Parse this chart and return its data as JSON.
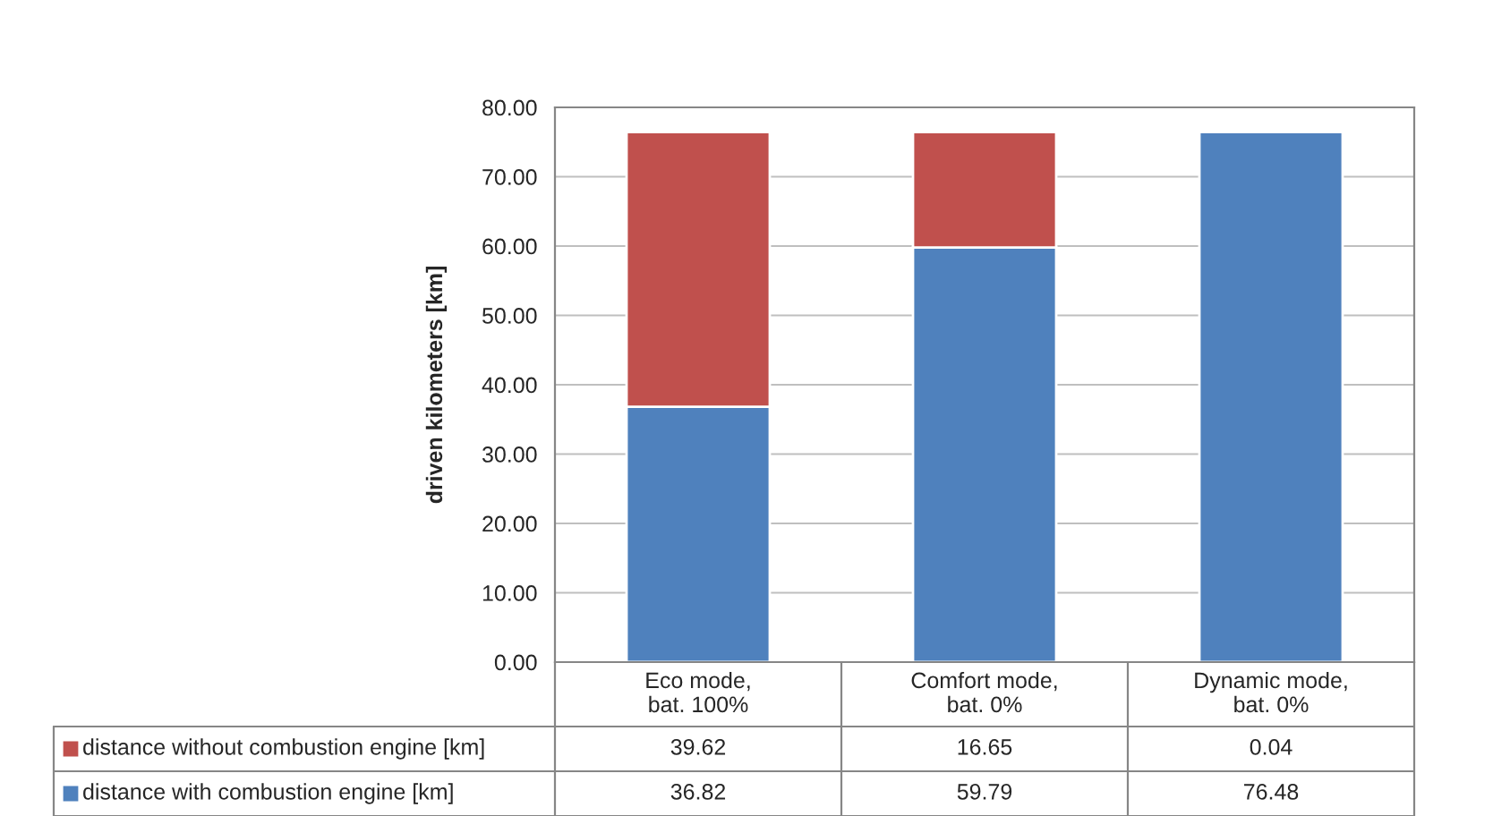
{
  "chart_data": {
    "type": "bar",
    "stacked": true,
    "ylabel": "driven kilometers [km]",
    "categories": [
      "Eco mode,\nbat. 100%",
      "Comfort mode,\nbat. 0%",
      "Dynamic mode,\nbat. 0%"
    ],
    "series": [
      {
        "name": "distance with combustion engine [km]",
        "color": "#4f81bd",
        "values": [
          36.82,
          59.79,
          76.48
        ]
      },
      {
        "name": "distance without combustion engine [km]",
        "color": "#c0504d",
        "values": [
          39.62,
          16.65,
          0.04
        ]
      }
    ],
    "ylim": [
      0,
      80
    ],
    "yticks": [
      {
        "value": 0,
        "label": "0.00"
      },
      {
        "value": 10,
        "label": "10.00"
      },
      {
        "value": 20,
        "label": "20.00"
      },
      {
        "value": 30,
        "label": "30.00"
      },
      {
        "value": 40,
        "label": "40.00"
      },
      {
        "value": 50,
        "label": "50.00"
      },
      {
        "value": 60,
        "label": "60.00"
      },
      {
        "value": 70,
        "label": "70.00"
      },
      {
        "value": 80,
        "label": "80.00"
      }
    ],
    "grid": "y",
    "legend": "bottom",
    "data_labels": true
  }
}
